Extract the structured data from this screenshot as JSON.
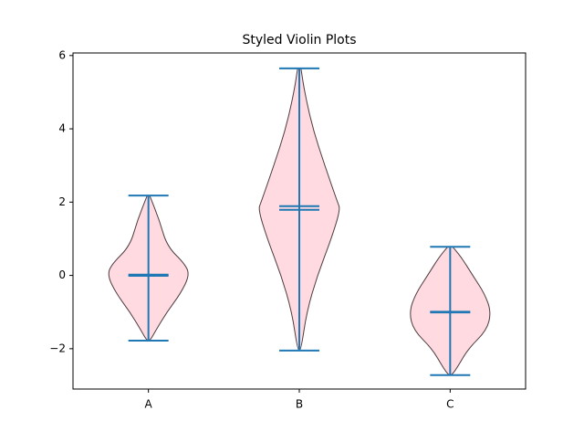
{
  "chart_data": {
    "type": "violin",
    "title": "Styled Violin Plots",
    "categories": [
      "A",
      "B",
      "C"
    ],
    "ylim": [
      -3.1,
      6.07
    ],
    "yticks": [
      {
        "value": -2,
        "label": "−2"
      },
      0,
      2,
      4,
      6
    ],
    "face_color": "#ffb6c1",
    "edge_color": "#4d3b3f",
    "line_color": "#1f77b4",
    "violins": [
      {
        "max": 2.18,
        "min": -1.78,
        "mean": 0.02,
        "median": -0.01,
        "profile": {
          "y": [
            2.18,
            1.5,
            0.8,
            0.3,
            0,
            -0.5,
            -1,
            -1.5,
            -1.78
          ],
          "width": [
            0.03,
            0.27,
            0.45,
            0.9,
            1,
            0.78,
            0.45,
            0.18,
            0.04
          ]
        }
      },
      {
        "max": 5.65,
        "min": -2.05,
        "mean": 1.89,
        "median": 1.79,
        "profile": {
          "y": [
            5.65,
            5,
            4,
            3,
            2,
            1.8,
            1,
            0,
            -1,
            -2.05
          ],
          "width": [
            0.04,
            0.13,
            0.33,
            0.62,
            0.93,
            1,
            0.78,
            0.44,
            0.18,
            0.04
          ]
        }
      },
      {
        "max": 0.78,
        "min": -2.72,
        "mean": -0.99,
        "median": -1.01,
        "profile": {
          "y": [
            0.78,
            0.5,
            0,
            -0.5,
            -1,
            -1.5,
            -2,
            -2.5,
            -2.72
          ],
          "width": [
            0.06,
            0.27,
            0.55,
            0.84,
            1,
            0.89,
            0.44,
            0.18,
            0.04
          ]
        }
      }
    ]
  }
}
